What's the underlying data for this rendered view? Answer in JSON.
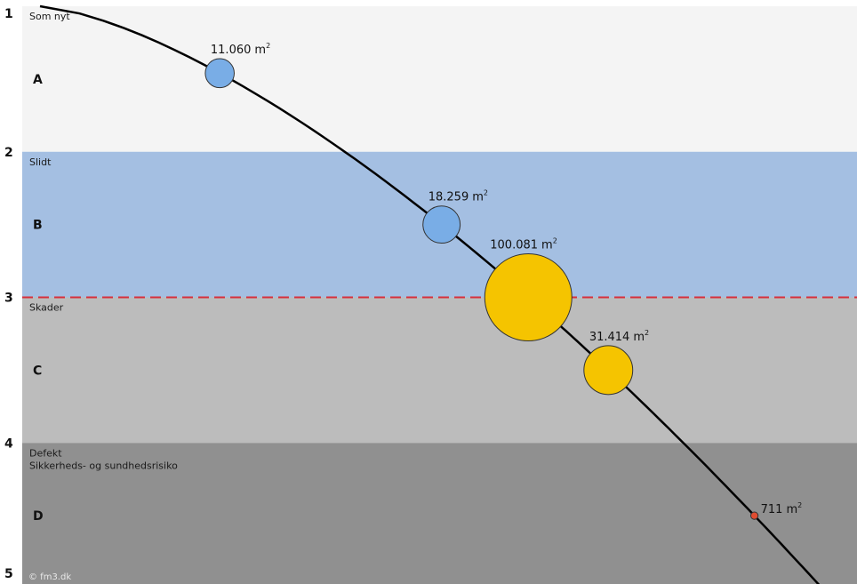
{
  "chart_data": {
    "type": "scatter",
    "title": "",
    "xlabel": "",
    "ylabel": "",
    "y_ticks": [
      "1",
      "2",
      "3",
      "4",
      "5"
    ],
    "ylim": [
      1,
      5
    ],
    "bands": [
      {
        "letter": "A",
        "range": [
          1,
          2
        ],
        "name": "Som nyt",
        "subname": "",
        "color": "#f4f4f4"
      },
      {
        "letter": "B",
        "range": [
          2,
          3
        ],
        "name": "Slidt",
        "subname": "",
        "color": "#a4bfe2"
      },
      {
        "letter": "C",
        "range": [
          3,
          4
        ],
        "name": "Skader",
        "subname": "",
        "color": "#bcbcbc"
      },
      {
        "letter": "D",
        "range": [
          4,
          5
        ],
        "name": "Defekt",
        "subname": "Sikkerheds- og sundhedsrisiko",
        "color": "#909090"
      }
    ],
    "threshold_line": {
      "y": 3,
      "color": "#d6303c",
      "style": "dashed"
    },
    "curve_color": "#000000",
    "points": [
      {
        "label": "11.060",
        "unit": "m",
        "sup": "2",
        "area": 11060,
        "y": 1.46,
        "color": "#79ade6"
      },
      {
        "label": "18.259",
        "unit": "m",
        "sup": "2",
        "area": 18259,
        "y": 2.5,
        "color": "#79ade6"
      },
      {
        "label": "100.081",
        "unit": "m",
        "sup": "2",
        "area": 100081,
        "y": 3.0,
        "color": "#f5c400"
      },
      {
        "label": "31.414",
        "unit": "m",
        "sup": "2",
        "area": 31414,
        "y": 3.5,
        "color": "#f5c400"
      },
      {
        "label": "711",
        "unit": "m",
        "sup": "2",
        "area": 711,
        "y": 4.5,
        "color": "#e04c30"
      }
    ],
    "credit": "© fm3.dk"
  }
}
